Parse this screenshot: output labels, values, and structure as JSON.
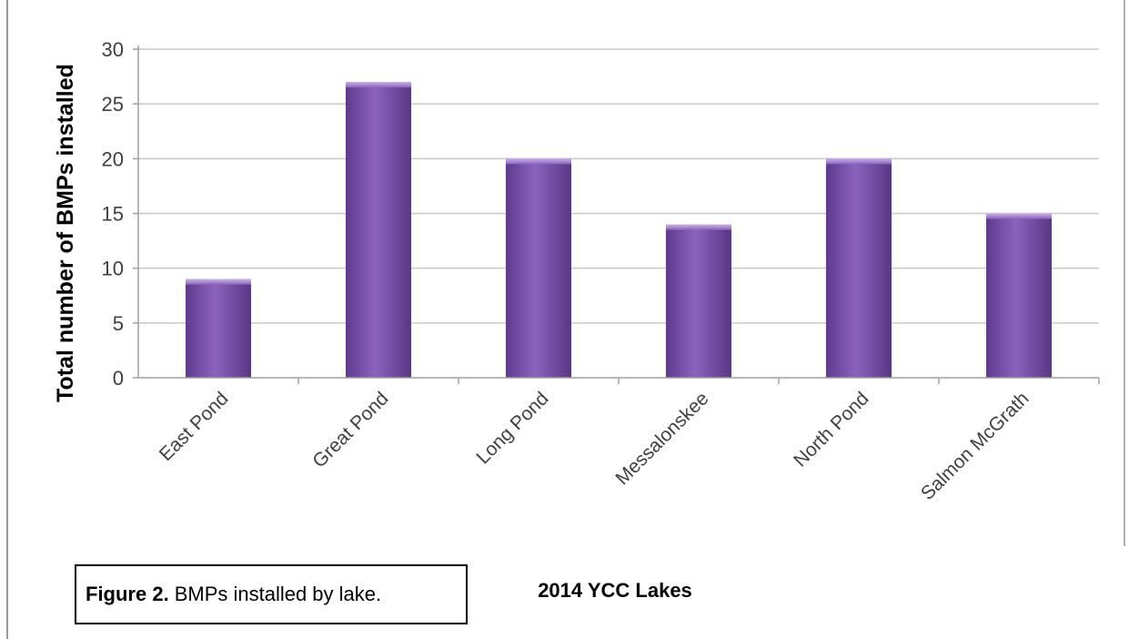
{
  "chart_data": {
    "type": "bar",
    "categories": [
      "East Pond",
      "Great Pond",
      "Long Pond",
      "Messalonskee",
      "North Pond",
      "Salmon McGrath"
    ],
    "values": [
      9,
      27,
      20,
      14,
      20,
      15
    ],
    "title": "",
    "xlabel": "2014 YCC Lakes",
    "ylabel": "Total number of BMPs installed",
    "ylim": [
      0,
      30
    ],
    "yticks": [
      0,
      5,
      10,
      15,
      20,
      25,
      30
    ],
    "grid": true,
    "bar_color": "#7a4fa8",
    "legend": "none"
  },
  "caption": {
    "label": "Figure 2.",
    "text": "BMPs installed by lake."
  }
}
